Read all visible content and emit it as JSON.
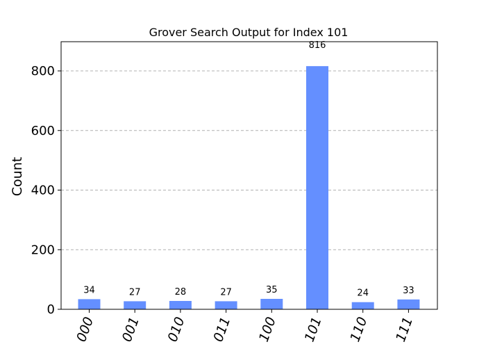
{
  "chart_data": {
    "type": "bar",
    "title": "Grover Search Output for Index 101",
    "xlabel": "",
    "ylabel": "Count",
    "categories": [
      "000",
      "001",
      "010",
      "011",
      "100",
      "101",
      "110",
      "111"
    ],
    "values": [
      34,
      27,
      28,
      27,
      35,
      816,
      24,
      33
    ],
    "ylim": [
      0,
      898
    ],
    "yticks": [
      0,
      200,
      400,
      600,
      800
    ],
    "grid": "horizontal dashed",
    "bar_color": "#648fff"
  }
}
